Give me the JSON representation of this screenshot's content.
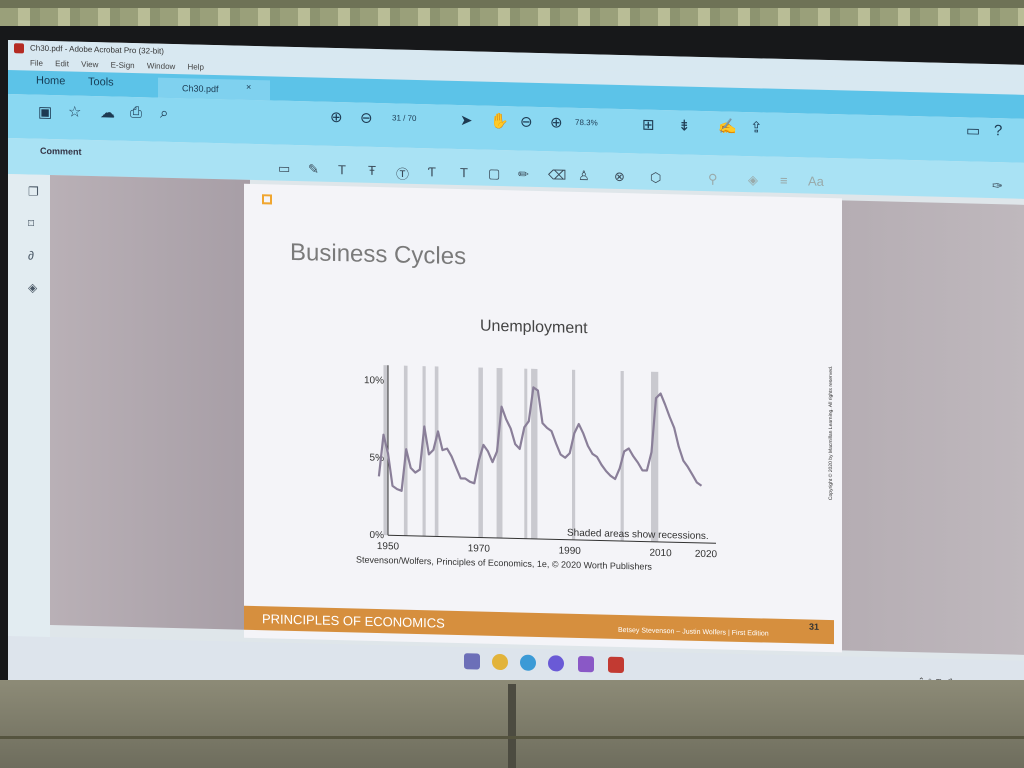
{
  "window": {
    "title": "Ch30.pdf - Adobe Acrobat Pro (32-bit)",
    "menu": [
      "File",
      "Edit",
      "View",
      "E-Sign",
      "Window",
      "Help"
    ]
  },
  "tabs": {
    "home": "Home",
    "tools": "Tools",
    "document": "Ch30.pdf",
    "close": "×"
  },
  "toolbar": {
    "page_current": "31",
    "page_total": "/ 70",
    "zoom": "78.3%"
  },
  "comment_bar": {
    "label": "Comment"
  },
  "slide": {
    "title": "Business Cycles",
    "credit": "Stevenson/Wolfers, Principles of Economics, 1e, © 2020 Worth Publishers",
    "page_number": "31",
    "footer_brand": "PRINCIPLES OF ECONOMICS",
    "footer_authors": "Betsey Stevenson – Justin Wolfers | First Edition",
    "side_credit": "Copyright © 2020 by Macmillan Learning. All rights reserved."
  },
  "chart_data": {
    "type": "line",
    "title": "Unemployment",
    "xlabel": "",
    "ylabel": "",
    "x_ticks": [
      "1950",
      "1970",
      "1990",
      "2010",
      "2020"
    ],
    "y_ticks": [
      "0%",
      "5%",
      "10%"
    ],
    "xlim": [
      1950,
      2020
    ],
    "ylim": [
      0,
      11
    ],
    "annotation": "Shaded areas show recessions.",
    "series": [
      {
        "color": "#8a7f99",
        "x": [
          1948,
          1949,
          1950,
          1951,
          1952,
          1953,
          1954,
          1955,
          1956,
          1957,
          1958,
          1959,
          1960,
          1961,
          1962,
          1963,
          1964,
          1965,
          1966,
          1967,
          1968,
          1969,
          1970,
          1971,
          1972,
          1973,
          1974,
          1975,
          1976,
          1977,
          1978,
          1979,
          1980,
          1981,
          1982,
          1983,
          1984,
          1985,
          1986,
          1987,
          1988,
          1989,
          1990,
          1991,
          1992,
          1993,
          1994,
          1995,
          1996,
          1997,
          1998,
          1999,
          2000,
          2001,
          2002,
          2003,
          2004,
          2005,
          2006,
          2007,
          2008,
          2009,
          2010,
          2011,
          2012,
          2013,
          2014,
          2015,
          2016,
          2017,
          2018,
          2019
        ],
        "y": [
          3.8,
          6.5,
          5.3,
          3.2,
          3.0,
          2.9,
          5.6,
          4.4,
          4.1,
          4.3,
          7.1,
          5.3,
          5.6,
          6.8,
          5.6,
          5.7,
          5.2,
          4.5,
          3.8,
          3.8,
          3.6,
          3.5,
          5.0,
          6.0,
          5.6,
          4.9,
          5.6,
          8.5,
          7.7,
          7.1,
          6.1,
          5.8,
          7.2,
          7.6,
          9.8,
          9.6,
          7.5,
          7.2,
          7.0,
          6.2,
          5.5,
          5.3,
          5.6,
          6.9,
          7.5,
          6.9,
          6.1,
          5.6,
          5.4,
          4.9,
          4.5,
          4.2,
          4.0,
          4.7,
          5.8,
          6.0,
          5.5,
          5.1,
          4.6,
          4.6,
          5.8,
          9.3,
          9.6,
          8.9,
          8.1,
          7.4,
          6.2,
          5.3,
          4.9,
          4.4,
          3.9,
          3.7
        ]
      }
    ],
    "recessions": [
      [
        1949,
        1950
      ],
      [
        1953.5,
        1954.3
      ],
      [
        1957.6,
        1958.3
      ],
      [
        1960.3,
        1961.1
      ],
      [
        1969.9,
        1970.9
      ],
      [
        1973.9,
        1975.2
      ],
      [
        1980.0,
        1980.5
      ],
      [
        1981.5,
        1982.9
      ],
      [
        1990.5,
        1991.2
      ],
      [
        2001.2,
        2001.9
      ],
      [
        2007.9,
        2009.5
      ]
    ]
  }
}
